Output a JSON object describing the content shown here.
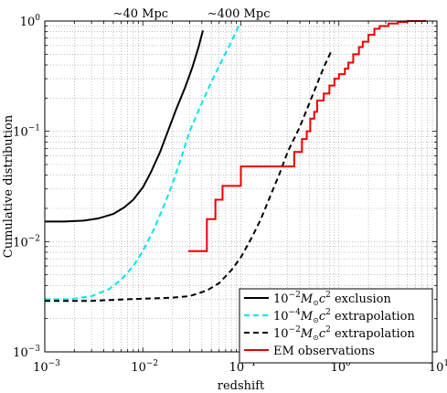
{
  "chart_data": {
    "type": "line",
    "title": "",
    "xlabel": "redshift",
    "ylabel": "Cumulative distribution",
    "xscale": "log",
    "yscale": "log",
    "xlim": [
      0.001,
      10
    ],
    "ylim": [
      0.001,
      1
    ],
    "grid": true,
    "legend_position": "bottom-right",
    "x_ticks": [
      0.001,
      0.01,
      0.1,
      1,
      10
    ],
    "y_ticks": [
      0.001,
      0.01,
      0.1,
      1
    ],
    "x_tick_labels": [
      {
        "base": "10",
        "exp": "−3"
      },
      {
        "base": "10",
        "exp": "−2"
      },
      {
        "base": "10",
        "exp": "−1"
      },
      {
        "base": "10",
        "exp": "0"
      },
      {
        "base": "10",
        "exp": "1"
      }
    ],
    "y_tick_labels": [
      {
        "base": "10",
        "exp": "−3"
      },
      {
        "base": "10",
        "exp": "−2"
      },
      {
        "base": "10",
        "exp": "−1"
      },
      {
        "base": "10",
        "exp": "0"
      }
    ],
    "annotations": [
      {
        "text": "∼40 Mpc",
        "x": 0.0095
      },
      {
        "text": "∼400 Mpc",
        "x": 0.095
      }
    ],
    "series": [
      {
        "name": "10−2M⊙c2 exclusion",
        "legend": {
          "coef": "10",
          "exp": "−2",
          "suffix": "exclusion"
        },
        "color": "#000000",
        "dash": "solid",
        "points": [
          [
            0.001,
            0.0152
          ],
          [
            0.0016,
            0.0152
          ],
          [
            0.0025,
            0.0155
          ],
          [
            0.0035,
            0.0162
          ],
          [
            0.005,
            0.0178
          ],
          [
            0.0065,
            0.0205
          ],
          [
            0.008,
            0.024
          ],
          [
            0.01,
            0.031
          ],
          [
            0.012,
            0.042
          ],
          [
            0.015,
            0.065
          ],
          [
            0.018,
            0.1
          ],
          [
            0.022,
            0.16
          ],
          [
            0.027,
            0.25
          ],
          [
            0.032,
            0.38
          ],
          [
            0.037,
            0.58
          ],
          [
            0.041,
            0.82
          ]
        ]
      },
      {
        "name": "10−4M⊙c2 extrapolation",
        "legend": {
          "coef": "10",
          "exp": "−4",
          "suffix": "extrapolation"
        },
        "color": "#00e5ee",
        "dash": "dashed",
        "points": [
          [
            0.001,
            0.003
          ],
          [
            0.0018,
            0.003
          ],
          [
            0.003,
            0.0032
          ],
          [
            0.0045,
            0.0037
          ],
          [
            0.006,
            0.0045
          ],
          [
            0.008,
            0.006
          ],
          [
            0.01,
            0.0082
          ],
          [
            0.013,
            0.013
          ],
          [
            0.016,
            0.02
          ],
          [
            0.02,
            0.033
          ],
          [
            0.025,
            0.06
          ],
          [
            0.03,
            0.1
          ],
          [
            0.04,
            0.18
          ],
          [
            0.05,
            0.28
          ],
          [
            0.065,
            0.45
          ],
          [
            0.08,
            0.65
          ],
          [
            0.095,
            0.9
          ]
        ]
      },
      {
        "name": "10−2M⊙c2 extrapolation",
        "legend": {
          "coef": "10",
          "exp": "−2",
          "suffix": "extrapolation"
        },
        "color": "#000000",
        "dash": "dashed",
        "points": [
          [
            0.001,
            0.0029
          ],
          [
            0.003,
            0.0029
          ],
          [
            0.007,
            0.003
          ],
          [
            0.02,
            0.0031
          ],
          [
            0.03,
            0.0032
          ],
          [
            0.045,
            0.0036
          ],
          [
            0.06,
            0.0042
          ],
          [
            0.08,
            0.0055
          ],
          [
            0.1,
            0.0072
          ],
          [
            0.13,
            0.011
          ],
          [
            0.16,
            0.016
          ],
          [
            0.2,
            0.026
          ],
          [
            0.25,
            0.042
          ],
          [
            0.3,
            0.065
          ],
          [
            0.4,
            0.11
          ],
          [
            0.5,
            0.18
          ],
          [
            0.6,
            0.27
          ],
          [
            0.7,
            0.38
          ],
          [
            0.85,
            0.55
          ]
        ]
      },
      {
        "name": "EM observations",
        "legend": {
          "text": "EM observations"
        },
        "color": "#ee0000",
        "dash": "solid",
        "step": true,
        "points": [
          [
            0.029,
            0.0082
          ],
          [
            0.045,
            0.0082
          ],
          [
            0.045,
            0.016
          ],
          [
            0.055,
            0.016
          ],
          [
            0.055,
            0.024
          ],
          [
            0.065,
            0.024
          ],
          [
            0.065,
            0.032
          ],
          [
            0.1,
            0.032
          ],
          [
            0.1,
            0.048
          ],
          [
            0.35,
            0.048
          ],
          [
            0.35,
            0.065
          ],
          [
            0.42,
            0.065
          ],
          [
            0.42,
            0.085
          ],
          [
            0.47,
            0.085
          ],
          [
            0.47,
            0.1
          ],
          [
            0.51,
            0.1
          ],
          [
            0.51,
            0.13
          ],
          [
            0.56,
            0.13
          ],
          [
            0.56,
            0.15
          ],
          [
            0.6,
            0.15
          ],
          [
            0.6,
            0.19
          ],
          [
            0.7,
            0.19
          ],
          [
            0.7,
            0.22
          ],
          [
            0.8,
            0.22
          ],
          [
            0.8,
            0.26
          ],
          [
            0.9,
            0.26
          ],
          [
            0.9,
            0.3
          ],
          [
            1.0,
            0.3
          ],
          [
            1.0,
            0.33
          ],
          [
            1.15,
            0.33
          ],
          [
            1.15,
            0.37
          ],
          [
            1.25,
            0.37
          ],
          [
            1.25,
            0.42
          ],
          [
            1.4,
            0.42
          ],
          [
            1.4,
            0.5
          ],
          [
            1.6,
            0.5
          ],
          [
            1.6,
            0.58
          ],
          [
            1.75,
            0.58
          ],
          [
            1.75,
            0.65
          ],
          [
            2.0,
            0.65
          ],
          [
            2.0,
            0.75
          ],
          [
            2.3,
            0.75
          ],
          [
            2.3,
            0.85
          ],
          [
            2.6,
            0.85
          ],
          [
            2.6,
            0.9
          ],
          [
            3.2,
            0.9
          ],
          [
            3.2,
            0.95
          ],
          [
            4.0,
            0.95
          ],
          [
            4.0,
            0.98
          ],
          [
            5.0,
            0.98
          ],
          [
            5.0,
            1.0
          ],
          [
            7.8,
            1.0
          ]
        ]
      }
    ]
  }
}
